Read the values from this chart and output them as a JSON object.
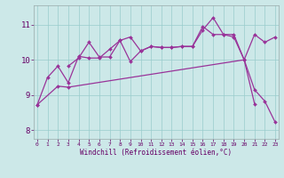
{
  "x_all": [
    0,
    1,
    2,
    3,
    4,
    5,
    6,
    7,
    8,
    9,
    10,
    11,
    12,
    13,
    14,
    15,
    16,
    17,
    18,
    19,
    20,
    21,
    22,
    23
  ],
  "line1_x": [
    0,
    1,
    2,
    3,
    4,
    5,
    6,
    7,
    8,
    9,
    10,
    11,
    12,
    13,
    14,
    15,
    16,
    17,
    18,
    19,
    20,
    21
  ],
  "line1_y": [
    8.72,
    9.5,
    9.82,
    9.35,
    10.1,
    10.05,
    10.05,
    10.3,
    10.55,
    9.95,
    10.25,
    10.38,
    10.35,
    10.35,
    10.38,
    10.38,
    10.85,
    11.2,
    10.72,
    10.72,
    10.0,
    8.75
  ],
  "line2_x": [
    3,
    4,
    5,
    6,
    7,
    8,
    9,
    10,
    11,
    12,
    13,
    14,
    15,
    16,
    17,
    18,
    19,
    20,
    21,
    22,
    23
  ],
  "line2_y": [
    9.82,
    10.05,
    10.5,
    10.08,
    10.08,
    10.55,
    10.65,
    10.25,
    10.38,
    10.35,
    10.35,
    10.38,
    10.38,
    10.95,
    10.72,
    10.72,
    10.65,
    10.0,
    10.72,
    10.5,
    10.65
  ],
  "line3_x": [
    0,
    2,
    3,
    20,
    21,
    22,
    23
  ],
  "line3_y": [
    8.72,
    9.25,
    9.22,
    10.0,
    9.15,
    8.82,
    8.22
  ],
  "background_color": "#cce8e8",
  "grid_color": "#99cccc",
  "line_color": "#993399",
  "markersize": 2.0,
  "linewidth": 0.9,
  "xlabel": "Windchill (Refroidissement éolien,°C)",
  "ylabel_ticks": [
    8,
    9,
    10,
    11
  ],
  "xticks": [
    0,
    1,
    2,
    3,
    4,
    5,
    6,
    7,
    8,
    9,
    10,
    11,
    12,
    13,
    14,
    15,
    16,
    17,
    18,
    19,
    20,
    21,
    22,
    23
  ],
  "ylim": [
    7.75,
    11.55
  ],
  "xlim": [
    -0.3,
    23.3
  ]
}
